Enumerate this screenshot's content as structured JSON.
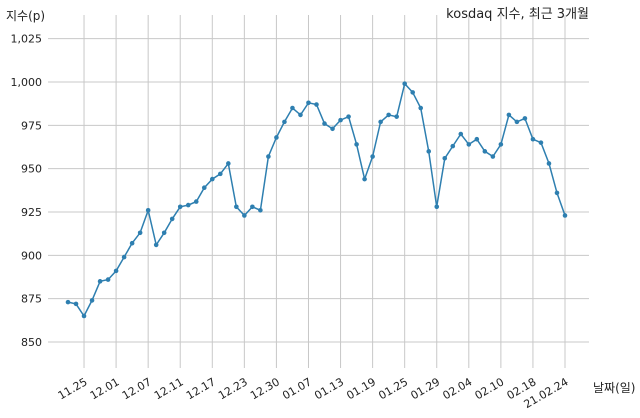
{
  "chart_data": {
    "type": "line",
    "title": "kosdaq 지수, 최근 3개월",
    "ylabel": "지수(p)",
    "xlabel": "날짜(일)",
    "ylim": [
      835,
      1030
    ],
    "yticks": [
      850,
      875,
      900,
      925,
      950,
      975,
      1000,
      1025
    ],
    "ytick_labels": [
      "850",
      "875",
      "900",
      "925",
      "950",
      "975",
      "1,000",
      "1,025"
    ],
    "xtick_labels": [
      "11.25",
      "12.01",
      "12.07",
      "12.11",
      "12.17",
      "12.23",
      "12.30",
      "01.07",
      "01.13",
      "01.19",
      "01.25",
      "01.29",
      "02.04",
      "02.10",
      "02.18",
      "21.02.24"
    ],
    "xtick_positions": [
      2,
      6,
      10,
      14,
      18,
      22,
      26,
      30,
      34,
      38,
      42,
      46,
      50,
      54,
      58,
      62
    ],
    "grid": true,
    "line_color": "#2e7fb0",
    "series": [
      {
        "values": [
          873,
          872,
          865,
          874,
          885,
          886,
          891,
          899,
          907,
          913,
          926,
          906,
          913,
          921,
          928,
          929,
          931,
          939,
          944,
          947,
          953,
          928,
          923,
          928,
          926,
          957,
          968,
          977,
          985,
          981,
          988,
          987,
          976,
          973,
          978,
          980,
          964,
          944,
          957,
          977,
          981,
          980,
          999,
          994,
          985,
          960,
          928,
          956,
          963,
          970,
          964,
          967,
          960,
          957,
          964,
          981,
          977,
          979,
          967,
          965,
          953,
          936,
          923
        ]
      }
    ]
  }
}
